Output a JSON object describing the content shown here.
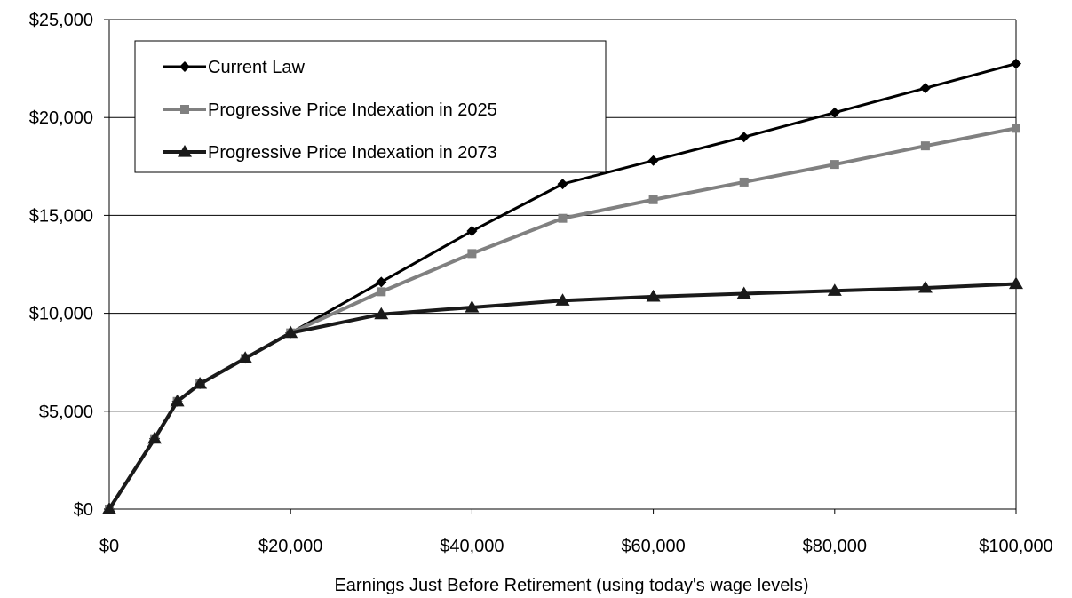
{
  "chart_data": {
    "type": "line",
    "title": "",
    "xlabel": "Earnings Just Before Retirement (using today's wage levels)",
    "ylabel": "",
    "xlim": [
      0,
      100000
    ],
    "ylim": [
      0,
      25000
    ],
    "x_ticks": [
      0,
      20000,
      40000,
      60000,
      80000,
      100000
    ],
    "x_tick_labels": [
      "$0",
      "$20,000",
      "$40,000",
      "$60,000",
      "$80,000",
      "$100,000"
    ],
    "y_ticks": [
      0,
      5000,
      10000,
      15000,
      20000,
      25000
    ],
    "y_tick_labels": [
      "$0",
      "$5,000",
      "$10,000",
      "$15,000",
      "$20,000",
      "$25,000"
    ],
    "grid": "horizontal",
    "legend_position": "top-left",
    "series": [
      {
        "name": "Current Law",
        "color": "#000000",
        "marker": "diamond",
        "x": [
          0,
          5000,
          7500,
          10000,
          15000,
          20000,
          30000,
          40000,
          50000,
          60000,
          70000,
          80000,
          90000,
          100000
        ],
        "y": [
          0,
          3600,
          5500,
          6400,
          7700,
          9000,
          11600,
          14200,
          16600,
          17800,
          19000,
          20250,
          21500,
          22750
        ]
      },
      {
        "name": "Progressive Price Indexation in 2025",
        "color": "#808080",
        "marker": "square",
        "x": [
          0,
          5000,
          7500,
          10000,
          15000,
          20000,
          30000,
          40000,
          50000,
          60000,
          70000,
          80000,
          90000,
          100000
        ],
        "y": [
          0,
          3600,
          5500,
          6400,
          7700,
          9000,
          11100,
          13050,
          14850,
          15800,
          16700,
          17600,
          18550,
          19450
        ]
      },
      {
        "name": "Progressive Price Indexation in 2073",
        "color": "#1a1a1a",
        "marker": "triangle",
        "x": [
          0,
          5000,
          7500,
          10000,
          15000,
          20000,
          30000,
          40000,
          50000,
          60000,
          70000,
          80000,
          90000,
          100000
        ],
        "y": [
          0,
          3600,
          5500,
          6400,
          7700,
          9000,
          9950,
          10300,
          10650,
          10850,
          11000,
          11150,
          11300,
          11500
        ]
      }
    ]
  }
}
